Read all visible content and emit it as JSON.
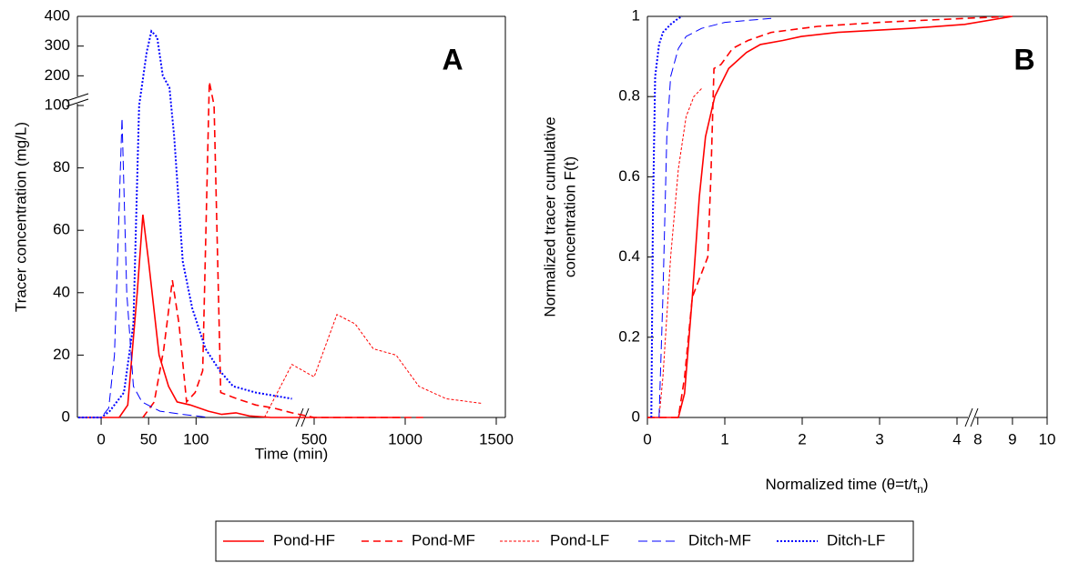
{
  "chart_data": [
    {
      "type": "line",
      "annotation": "A",
      "xlabel": "Time (min)",
      "ylabel": "Tracer concentration (mg/L)",
      "xlim": [
        [
          -25,
          210
        ],
        [
          450,
          1550
        ]
      ],
      "ylim": [
        [
          0,
          100
        ],
        [
          100,
          400
        ]
      ],
      "xticks": [
        0,
        50,
        100,
        500,
        1000,
        1500
      ],
      "yticks": [
        0,
        20,
        40,
        60,
        80,
        100,
        200,
        300,
        400
      ],
      "series": [
        {
          "name": "Pond-HF",
          "color": "#ff0000",
          "line_style": "solid",
          "x": [
            -24,
            19,
            28,
            38,
            44,
            50,
            61,
            71,
            80,
            94,
            113,
            127,
            142,
            156,
            179,
            500,
            975
          ],
          "values": [
            0,
            0,
            4,
            40,
            65,
            50,
            20,
            10,
            5,
            4,
            2,
            1,
            1.5,
            0.5,
            0,
            0,
            0
          ]
        },
        {
          "name": "Pond-MF",
          "color": "#ff0000",
          "line_style": "dashed",
          "x": [
            44,
            56,
            66,
            75,
            82,
            90,
            99,
            107,
            114,
            119,
            126,
            143,
            163,
            182,
            201,
            500,
            1100
          ],
          "values": [
            0,
            5,
            22,
            44,
            30,
            5,
            8,
            15,
            180,
            100,
            8,
            6,
            4,
            3,
            1.5,
            0,
            0
          ]
        },
        {
          "name": "Pond-LF",
          "color": "#ff0000",
          "line_style": "short-dashed",
          "x": [
            172,
            201,
            500,
            625,
            725,
            825,
            950,
            1075,
            1225,
            1425
          ],
          "values": [
            0,
            17,
            13,
            33,
            30,
            22,
            20,
            10,
            6,
            4.5
          ]
        },
        {
          "name": "Ditch-MF",
          "color": "#0000ff",
          "line_style": "long-dashed",
          "x": [
            -24,
            0,
            8,
            14,
            22,
            27,
            34,
            43,
            62,
            86,
            114
          ],
          "values": [
            0,
            0,
            3,
            20,
            96,
            40,
            10,
            5,
            2,
            1,
            0
          ]
        },
        {
          "name": "Ditch-LF",
          "color": "#0000ff",
          "line_style": "dotted",
          "x": [
            -24,
            0,
            9,
            24,
            34,
            40,
            48,
            53,
            59,
            65,
            72,
            77,
            86,
            96,
            110,
            125,
            139,
            163,
            201
          ],
          "values": [
            0,
            0,
            2,
            8,
            30,
            100,
            280,
            350,
            330,
            200,
            160,
            90,
            50,
            35,
            22,
            15,
            10,
            8,
            6
          ]
        }
      ]
    },
    {
      "type": "line",
      "annotation": "B",
      "xlabel": {
        "text": "Normalized time (θ=t/t",
        "subscript": "n",
        "suffix": ")"
      },
      "ylabel": [
        "Normalized tracer cumulative",
        "concentration F(t)"
      ],
      "xlim": [
        [
          0,
          4.2
        ],
        [
          7.9,
          10
        ]
      ],
      "ylim": [
        0,
        1
      ],
      "xticks": [
        0,
        1,
        2,
        3,
        4,
        8,
        9,
        10
      ],
      "yticks": [
        0,
        0.2,
        0.4,
        0.6,
        0.8,
        1
      ],
      "series": [
        {
          "color": "#ff0000",
          "line_style": "solid",
          "x": [
            0,
            0.4,
            0.48,
            0.58,
            0.67,
            0.75,
            0.87,
            1.05,
            1.28,
            1.46,
            1.75,
            1.99,
            2.46,
            3.4,
            4.1,
            9
          ],
          "values": [
            0,
            0,
            0.06,
            0.3,
            0.55,
            0.7,
            0.8,
            0.87,
            0.91,
            0.93,
            0.94,
            0.95,
            0.96,
            0.97,
            0.98,
            1
          ]
        },
        {
          "color": "#ff0000",
          "line_style": "dashed",
          "x": [
            0,
            0.4,
            0.48,
            0.58,
            0.68,
            0.78,
            0.82,
            0.86,
            0.95,
            1.1,
            1.3,
            1.6,
            2.2,
            3,
            4.1,
            9
          ],
          "values": [
            0,
            0,
            0.1,
            0.3,
            0.35,
            0.4,
            0.6,
            0.87,
            0.88,
            0.92,
            0.94,
            0.96,
            0.975,
            0.985,
            0.995,
            1
          ]
        },
        {
          "color": "#ff0000",
          "line_style": "short-dashed",
          "x": [
            0.15,
            0.2,
            0.3,
            0.4,
            0.5,
            0.6,
            0.7
          ],
          "values": [
            0,
            0.1,
            0.4,
            0.62,
            0.75,
            0.8,
            0.82
          ]
        },
        {
          "color": "#0000ff",
          "line_style": "long-dashed",
          "x": [
            0.15,
            0.2,
            0.25,
            0.3,
            0.4,
            0.5,
            0.7,
            1,
            1.6
          ],
          "values": [
            0,
            0.3,
            0.7,
            0.85,
            0.92,
            0.95,
            0.97,
            0.985,
            0.995
          ]
        },
        {
          "color": "#0000ff",
          "line_style": "dotted",
          "x": [
            0.05,
            0.07,
            0.1,
            0.15,
            0.2,
            0.3,
            0.4,
            0.45
          ],
          "values": [
            0,
            0.5,
            0.85,
            0.93,
            0.96,
            0.98,
            0.995,
            1
          ]
        }
      ]
    }
  ]
}
